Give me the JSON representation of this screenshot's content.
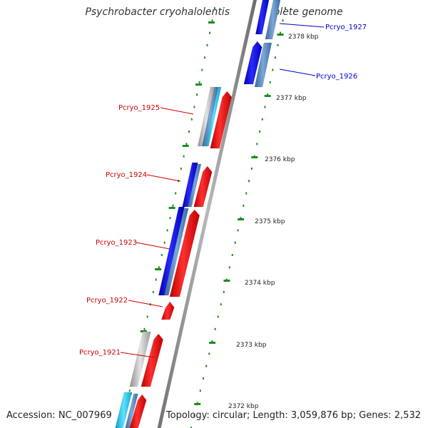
{
  "header": {
    "title": "Psychrobacter cryohalolentis K5, complete genome"
  },
  "footer": {
    "accession": "Accession: NC_007969",
    "summary": "Topology: circular; Length: 3,059,876 bp; Genes: 2,532"
  },
  "map": {
    "kbp_labels": [
      "2378 kbp",
      "2377 kbp",
      "2376 kbp",
      "2375 kbp",
      "2374 kbp",
      "2373 kbp",
      "2372 kbp"
    ],
    "gene_labels": [
      {
        "text": "Pcryo_1927",
        "color": "#0000cc",
        "strand": "forward"
      },
      {
        "text": "Pcryo_1926",
        "color": "#0000cc",
        "strand": "forward"
      },
      {
        "text": "Pcryo_1925",
        "color": "#cc0000",
        "strand": "reverse"
      },
      {
        "text": "Pcryo_1924",
        "color": "#cc0000",
        "strand": "reverse"
      },
      {
        "text": "Pcryo_1923",
        "color": "#cc0000",
        "strand": "reverse"
      },
      {
        "text": "Pcryo_1922",
        "color": "#cc0000",
        "strand": "reverse"
      },
      {
        "text": "Pcryo_1921",
        "color": "#cc0000",
        "strand": "reverse"
      }
    ],
    "colors": {
      "forward_cds": "#0000ee",
      "reverse_cds": "#ee0000",
      "steel": "#4a7fb5",
      "cyan": "#18c0e0",
      "gray": "#b0b0b0",
      "backbone": "#8a8a8a",
      "tick": "#1e8c1e"
    }
  }
}
